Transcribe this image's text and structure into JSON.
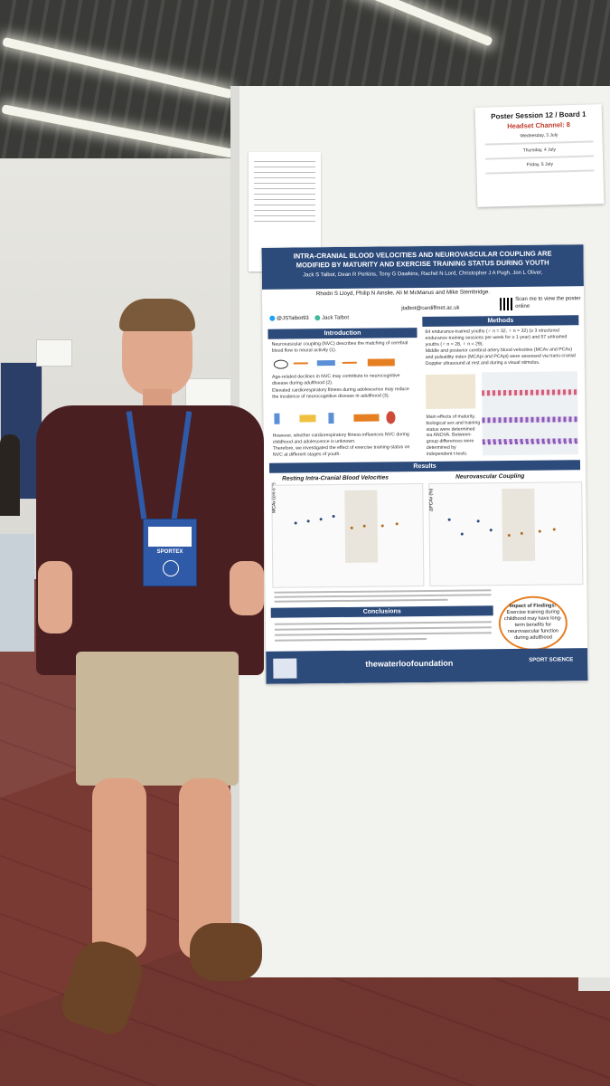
{
  "session_card": {
    "title": "Poster Session 12 / Board 1",
    "channel": "Headset Channel: 8",
    "days": [
      "Wednesday, 3 July",
      "Thursday, 4 July",
      "Friday, 5 July"
    ]
  },
  "poster": {
    "title_line1": "INTRA-CRANIAL BLOOD VELOCITIES AND NEUROVASCULAR COUPLING ARE",
    "title_line2": "MODIFIED BY MATURITY AND EXERCISE TRAINING STATUS DURING YOUTH",
    "authors_line1": "Jack S Talbot, Dean R Perkins, Tony G Dawkins, Rachel N Lord, Christopher J A Pugh, Jon L Oliver,",
    "authors_line2": "Rhodri S Lloyd, Philip N Ainslie, Ali M McManus and Mike Stembridge.",
    "email": "jtalbot@cardiffmet.ac.uk",
    "twitter": "@JSTalbot93",
    "researchgate": "Jack Talbot",
    "scan_text": "Scan me to view the poster online",
    "sections": {
      "introduction": "Introduction",
      "methods": "Methods",
      "results": "Results",
      "conclusions": "Conclusions"
    },
    "intro_points": [
      "Neurovascular coupling (NVC) describes the matching of cerebral blood flow to neural activity (1).",
      "Age-related declines in NVC may contribute to neurocognitive disease during adulthood (2).",
      "Elevated cardiorespiratory fitness during adolescence may reduce the incidence of neurocognitive disease in adulthood (3).",
      "However, whether cardiorespiratory fitness influences NVC during childhood and adolescence is unknown.",
      "Therefore, we investigated the effect of exercise training-status on NVC at different stages of youth."
    ],
    "methods_points": [
      "64 endurance-trained youths (♂ n = 32, ♀ n = 32) (≥ 3 structured endurance training sessions per week for ≥ 1 year) and 57 untrained youths (♂ n = 28, ♀ n = 29).",
      "Middle and posterior cerebral artery blood velocities (MCAv and PCAv) and pulsatility index (MCApi and PCApi) were assessed via trans-cranial Doppler ultrasound at rest and during a visual stimulus.",
      "Main effects of maturity, biological sex and training status were determined via ANOVA. Between-group differences were determined by independent t-tests."
    ],
    "chart_left_title": "Resting Intra-Cranial Blood Velocities",
    "chart_right_title": "Neurovascular Coupling",
    "chart_left_ylabel": "MCAv (cm·s⁻¹)",
    "chart_right_ylabel": "ΔPCAv (%)",
    "impact_title": "Impact of Findings:",
    "impact_text": "Exercise training during childhood may have long-term benefits for neurovascular function during adulthood",
    "foundation": "thewaterloofoundation",
    "sport_science": "SPORT SCIENCE"
  },
  "person": {
    "badge_label": "SPORTEX"
  },
  "colors": {
    "poster_navy": "#2c4a7a",
    "accent_orange": "#e67e22",
    "shirt": "#4a1f22",
    "shorts": "#c9b79a"
  }
}
